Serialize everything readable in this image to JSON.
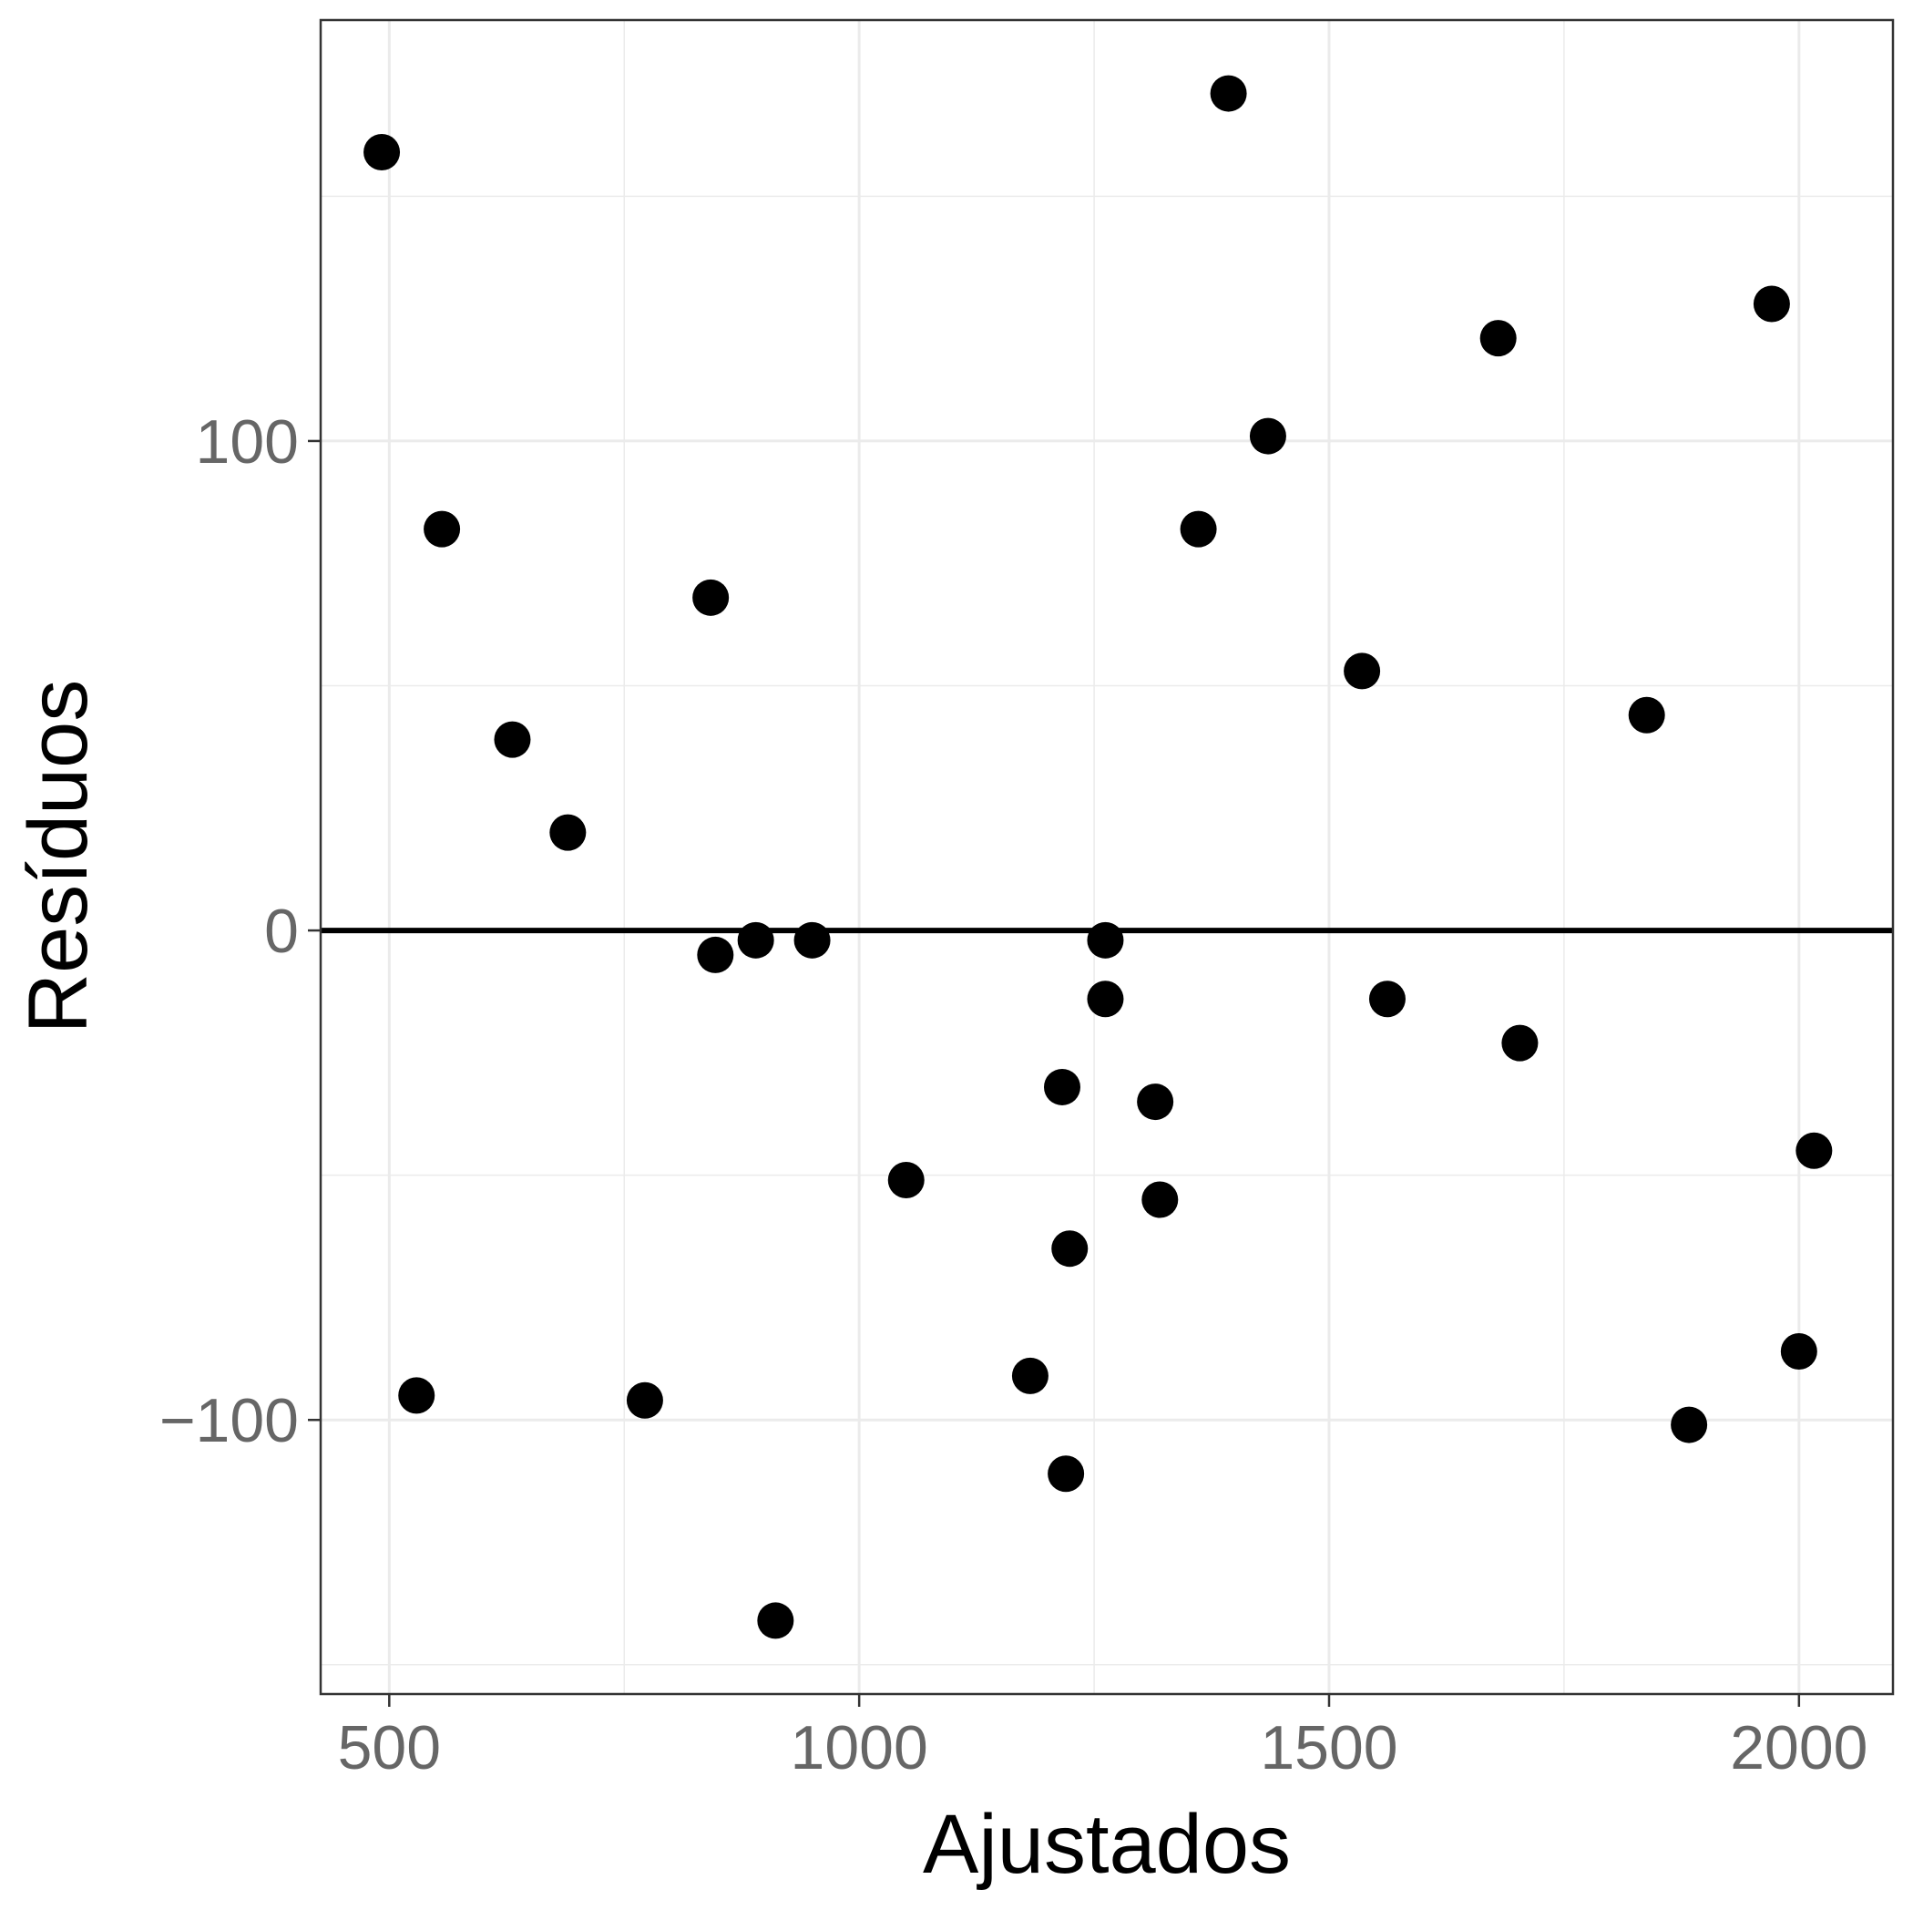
{
  "chart_data": {
    "type": "scatter",
    "title": "",
    "xlabel": "Ajustados",
    "ylabel": "Resíduos",
    "xlim": [
      427,
      2100
    ],
    "ylim": [
      -156,
      186
    ],
    "x_ticks": [
      500,
      1000,
      1500,
      2000
    ],
    "x_tick_labels": [
      "500",
      "1000",
      "1500",
      "2000"
    ],
    "x_minor_gridlines": [
      750,
      1250,
      1750
    ],
    "y_ticks": [
      -100,
      0,
      100
    ],
    "y_tick_labels": [
      "−100",
      "0",
      "100"
    ],
    "y_minor_gridlines": [
      -150,
      -50,
      50,
      150
    ],
    "grid": true,
    "reference_line_y": 0,
    "colors": {
      "points": "#000000",
      "grid": "#ebebeb",
      "panel_border": "#333333",
      "tick_label": "#666666",
      "reference_line": "#000000"
    },
    "points": [
      {
        "x": 492,
        "y": 159
      },
      {
        "x": 529,
        "y": -95
      },
      {
        "x": 556,
        "y": 82
      },
      {
        "x": 631,
        "y": 39
      },
      {
        "x": 690,
        "y": 20
      },
      {
        "x": 772,
        "y": -96
      },
      {
        "x": 842,
        "y": 68
      },
      {
        "x": 847,
        "y": -5
      },
      {
        "x": 890,
        "y": -2
      },
      {
        "x": 911,
        "y": -141
      },
      {
        "x": 950,
        "y": -2
      },
      {
        "x": 1050,
        "y": -51
      },
      {
        "x": 1182,
        "y": -91
      },
      {
        "x": 1216,
        "y": -32
      },
      {
        "x": 1220,
        "y": -111
      },
      {
        "x": 1224,
        "y": -65
      },
      {
        "x": 1262,
        "y": -2
      },
      {
        "x": 1262,
        "y": -14
      },
      {
        "x": 1315,
        "y": -35
      },
      {
        "x": 1320,
        "y": -55
      },
      {
        "x": 1361,
        "y": 82
      },
      {
        "x": 1393,
        "y": 171
      },
      {
        "x": 1435,
        "y": 101
      },
      {
        "x": 1535,
        "y": 53
      },
      {
        "x": 1562,
        "y": -14
      },
      {
        "x": 1680,
        "y": 121
      },
      {
        "x": 1703,
        "y": -23
      },
      {
        "x": 1838,
        "y": 44
      },
      {
        "x": 1883,
        "y": -101
      },
      {
        "x": 1971,
        "y": 128
      },
      {
        "x": 2000,
        "y": -86
      },
      {
        "x": 2016,
        "y": -45
      }
    ]
  }
}
